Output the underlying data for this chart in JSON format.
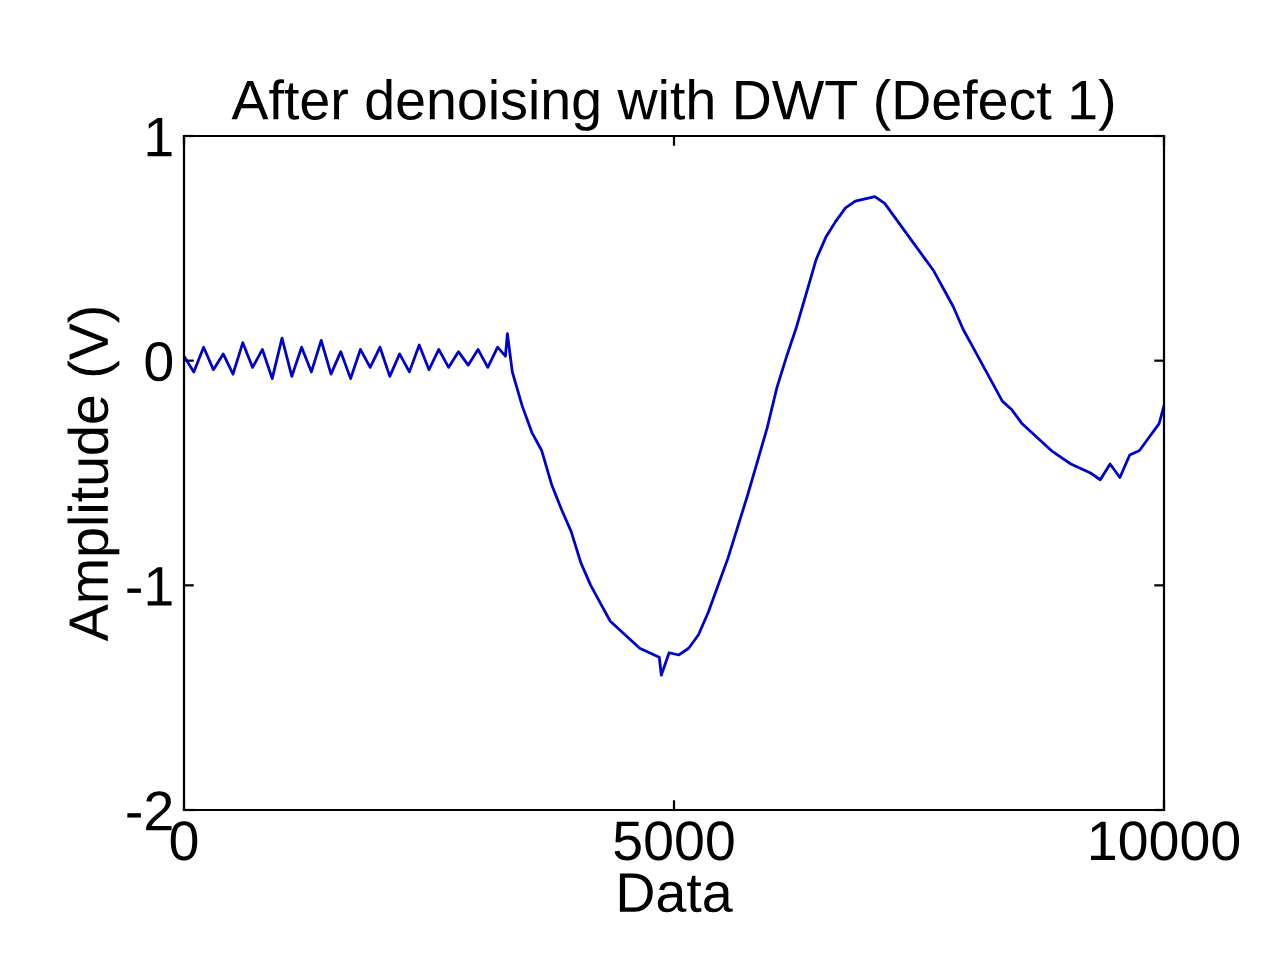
{
  "chart_data": {
    "type": "line",
    "title": "After denoising with DWT (Defect 1)",
    "xlabel": "Data",
    "ylabel": "Amplitude (V)",
    "x": [
      0,
      100,
      200,
      300,
      400,
      500,
      600,
      700,
      800,
      900,
      1000,
      1100,
      1200,
      1300,
      1400,
      1500,
      1600,
      1700,
      1800,
      1900,
      2000,
      2100,
      2200,
      2300,
      2400,
      2500,
      2600,
      2700,
      2800,
      2900,
      3000,
      3100,
      3200,
      3280,
      3300,
      3350,
      3450,
      3550,
      3650,
      3750,
      3850,
      3950,
      4050,
      4150,
      4250,
      4350,
      4450,
      4550,
      4650,
      4750,
      4850,
      4870,
      4950,
      5050,
      5150,
      5250,
      5350,
      5450,
      5550,
      5650,
      5750,
      5850,
      5950,
      6050,
      6150,
      6250,
      6350,
      6450,
      6550,
      6650,
      6750,
      6850,
      6950,
      7050,
      7150,
      7250,
      7350,
      7450,
      7550,
      7650,
      7750,
      7850,
      7950,
      8050,
      8150,
      8250,
      8350,
      8450,
      8550,
      8650,
      8750,
      8850,
      8950,
      9050,
      9150,
      9250,
      9350,
      9450,
      9550,
      9650,
      9750,
      9850,
      9950,
      10000
    ],
    "series": [
      {
        "color": "#0000cc",
        "values": [
          0.02,
          -0.05,
          0.06,
          -0.04,
          0.03,
          -0.06,
          0.08,
          -0.03,
          0.05,
          -0.08,
          0.1,
          -0.07,
          0.06,
          -0.05,
          0.09,
          -0.06,
          0.04,
          -0.08,
          0.05,
          -0.03,
          0.06,
          -0.07,
          0.03,
          -0.05,
          0.07,
          -0.04,
          0.05,
          -0.03,
          0.04,
          -0.02,
          0.05,
          -0.03,
          0.06,
          0.02,
          0.12,
          -0.05,
          -0.2,
          -0.32,
          -0.4,
          -0.55,
          -0.66,
          -0.76,
          -0.9,
          -1.0,
          -1.08,
          -1.16,
          -1.2,
          -1.24,
          -1.28,
          -1.3,
          -1.32,
          -1.4,
          -1.3,
          -1.31,
          -1.28,
          -1.22,
          -1.12,
          -1.0,
          -0.88,
          -0.74,
          -0.6,
          -0.45,
          -0.3,
          -0.12,
          0.02,
          0.15,
          0.3,
          0.45,
          0.55,
          0.62,
          0.68,
          0.71,
          0.72,
          0.73,
          0.7,
          0.64,
          0.58,
          0.52,
          0.46,
          0.4,
          0.32,
          0.24,
          0.14,
          0.06,
          -0.02,
          -0.1,
          -0.18,
          -0.22,
          -0.28,
          -0.32,
          -0.36,
          -0.4,
          -0.43,
          -0.46,
          -0.48,
          -0.5,
          -0.53,
          -0.46,
          -0.52,
          -0.42,
          -0.4,
          -0.34,
          -0.28,
          -0.2
        ]
      }
    ],
    "xlim": [
      0,
      10000
    ],
    "ylim": [
      -2,
      1
    ],
    "xticks": [
      0,
      5000,
      10000
    ],
    "yticks": [
      -2,
      -1,
      0,
      1
    ],
    "grid": false,
    "legend": false
  }
}
